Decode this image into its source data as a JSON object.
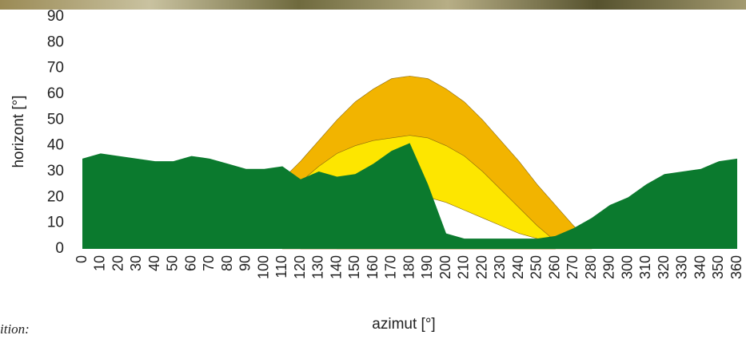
{
  "chart_data": {
    "type": "area",
    "y_label": "horizont [°]",
    "x_label": "azimut [°]",
    "caption": "ition:",
    "x": [
      0,
      10,
      20,
      30,
      40,
      50,
      60,
      70,
      80,
      90,
      100,
      110,
      120,
      130,
      140,
      150,
      160,
      170,
      180,
      190,
      200,
      210,
      220,
      230,
      240,
      250,
      260,
      270,
      280,
      290,
      300,
      310,
      320,
      330,
      340,
      350,
      360
    ],
    "xlim": [
      0,
      360
    ],
    "xticks": [
      0,
      10,
      20,
      30,
      40,
      50,
      60,
      70,
      80,
      90,
      100,
      110,
      120,
      130,
      140,
      150,
      160,
      170,
      180,
      190,
      200,
      210,
      220,
      230,
      240,
      250,
      260,
      270,
      280,
      290,
      300,
      310,
      320,
      330,
      340,
      350,
      360
    ],
    "ylim": [
      0,
      90
    ],
    "yticks": [
      0,
      10,
      20,
      30,
      40,
      50,
      60,
      70,
      80,
      90
    ],
    "series": [
      {
        "color": "#f2b400",
        "values": [
          null,
          null,
          null,
          null,
          null,
          null,
          null,
          null,
          null,
          null,
          null,
          27,
          34,
          42,
          50,
          57,
          62,
          66,
          67,
          66,
          62,
          57,
          50,
          42,
          34,
          25,
          17,
          9,
          2,
          null,
          null,
          null,
          null,
          null,
          null,
          null,
          null
        ]
      },
      {
        "color": "#fde600",
        "values": [
          null,
          null,
          null,
          null,
          null,
          null,
          null,
          null,
          null,
          null,
          null,
          null,
          26,
          32,
          37,
          40,
          42,
          43,
          44,
          43,
          40,
          36,
          30,
          23,
          16,
          9,
          3,
          null,
          null,
          null,
          null,
          null,
          null,
          null,
          null,
          null,
          null
        ]
      },
      {
        "color": "#ffffff",
        "values": [
          null,
          null,
          null,
          null,
          null,
          null,
          null,
          null,
          null,
          null,
          null,
          null,
          null,
          null,
          12,
          16,
          19,
          21,
          21,
          20,
          18,
          15,
          12,
          9,
          6,
          4,
          2,
          null,
          null,
          null,
          null,
          null,
          null,
          null,
          null,
          null,
          null
        ]
      },
      {
        "color": "#0b7a2e",
        "values": [
          35,
          37,
          36,
          35,
          34,
          34,
          36,
          35,
          33,
          31,
          31,
          32,
          27,
          30,
          28,
          29,
          33,
          38,
          41,
          25,
          6,
          4,
          4,
          4,
          4,
          4,
          5,
          8,
          12,
          17,
          20,
          25,
          29,
          30,
          31,
          34,
          35
        ]
      }
    ]
  }
}
